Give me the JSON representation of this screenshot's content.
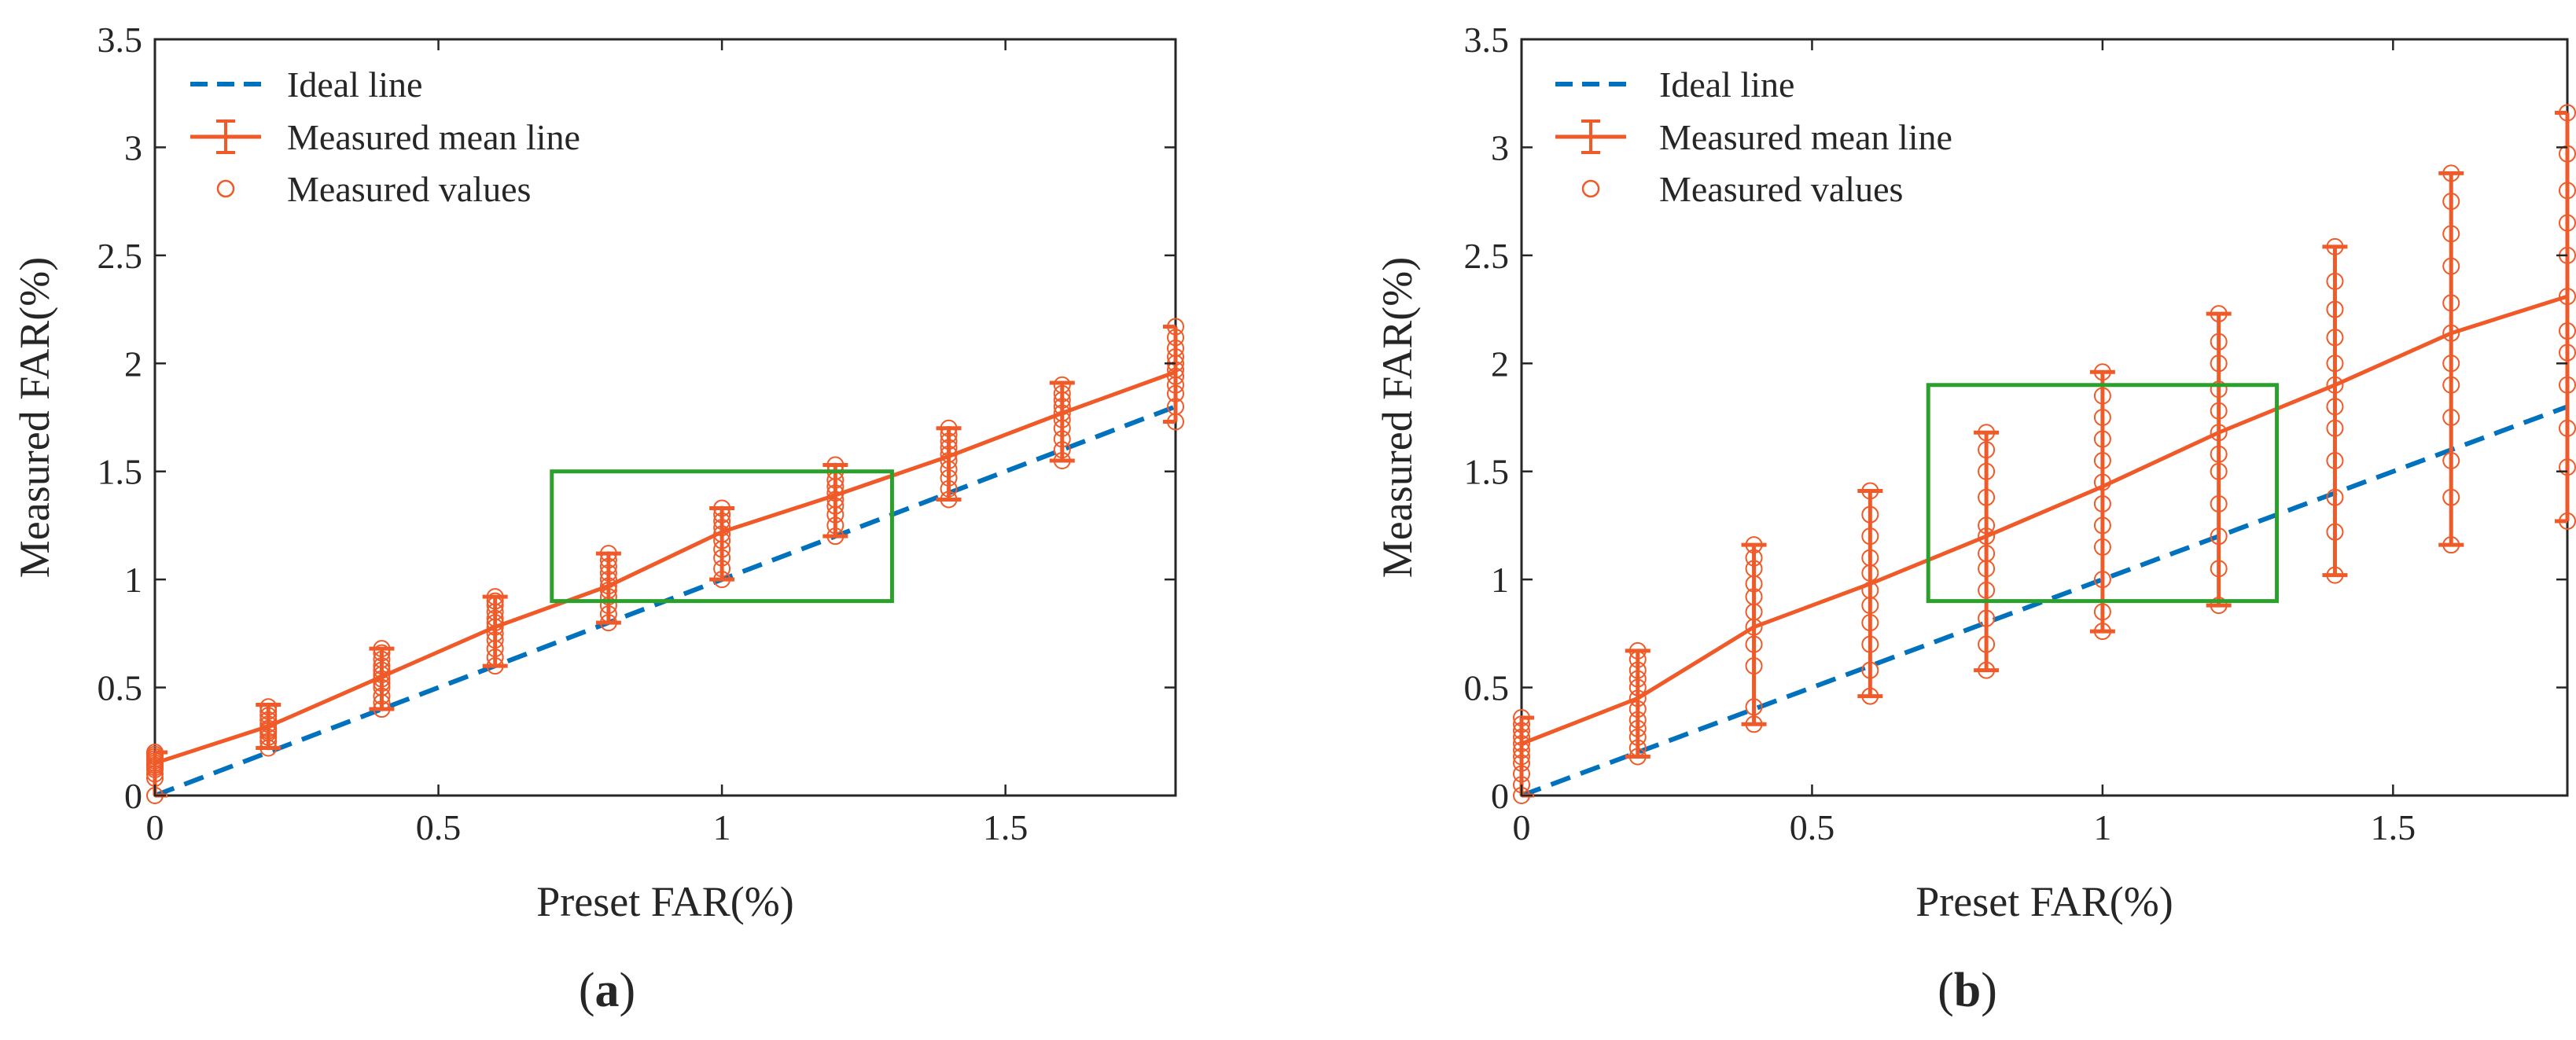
{
  "chart_data": [
    {
      "type": "line",
      "panel": "a",
      "caption_open": "(",
      "caption_letter": "a",
      "caption_close": ")",
      "xlabel": "Preset FAR(%)",
      "ylabel": "Measured FAR(%)",
      "xlim": [
        0,
        1.8
      ],
      "ylim": [
        0,
        3.5
      ],
      "xticks": [
        0,
        0.5,
        1,
        1.5
      ],
      "xtick_labels": [
        "0",
        "0.5",
        "1",
        "1.5"
      ],
      "yticks": [
        0,
        0.5,
        1,
        1.5,
        2,
        2.5,
        3,
        3.5
      ],
      "ytick_labels": [
        "0",
        "0.5",
        "1",
        "1.5",
        "2",
        "2.5",
        "3",
        "3.5"
      ],
      "legend": [
        "Ideal line",
        "Measured mean line",
        "Measured values"
      ],
      "legend_position": "top-left",
      "colors": {
        "ideal": "#0072BD",
        "measured": "#F05A28",
        "box": "#2CA02C"
      },
      "x": [
        0,
        0.2,
        0.4,
        0.6,
        0.8,
        1.0,
        1.2,
        1.4,
        1.6,
        1.8
      ],
      "ideal": [
        0,
        0.2,
        0.4,
        0.6,
        0.8,
        1.0,
        1.2,
        1.4,
        1.6,
        1.8
      ],
      "mean": [
        0.15,
        0.32,
        0.55,
        0.78,
        0.97,
        1.22,
        1.39,
        1.57,
        1.77,
        1.96
      ],
      "err_low": [
        0.0,
        0.22,
        0.4,
        0.6,
        0.8,
        1.0,
        1.2,
        1.37,
        1.55,
        1.73
      ],
      "err_high": [
        0.2,
        0.42,
        0.68,
        0.92,
        1.12,
        1.33,
        1.53,
        1.7,
        1.91,
        2.17
      ],
      "scatter": [
        [
          0.0,
          0.08,
          0.1,
          0.12,
          0.13,
          0.14,
          0.15,
          0.16,
          0.17,
          0.18,
          0.19,
          0.2
        ],
        [
          0.22,
          0.25,
          0.27,
          0.29,
          0.3,
          0.31,
          0.33,
          0.35,
          0.37,
          0.39,
          0.41
        ],
        [
          0.4,
          0.43,
          0.46,
          0.5,
          0.52,
          0.54,
          0.56,
          0.58,
          0.6,
          0.63,
          0.66,
          0.68
        ],
        [
          0.6,
          0.64,
          0.68,
          0.72,
          0.75,
          0.78,
          0.8,
          0.82,
          0.85,
          0.88,
          0.9,
          0.92
        ],
        [
          0.8,
          0.84,
          0.88,
          0.92,
          0.95,
          0.97,
          1.0,
          1.03,
          1.06,
          1.09,
          1.12
        ],
        [
          1.0,
          1.05,
          1.1,
          1.14,
          1.18,
          1.21,
          1.24,
          1.27,
          1.3,
          1.33
        ],
        [
          1.2,
          1.25,
          1.3,
          1.34,
          1.37,
          1.4,
          1.43,
          1.46,
          1.5,
          1.53
        ],
        [
          1.37,
          1.42,
          1.47,
          1.51,
          1.55,
          1.58,
          1.61,
          1.64,
          1.67,
          1.7
        ],
        [
          1.55,
          1.6,
          1.65,
          1.7,
          1.74,
          1.77,
          1.8,
          1.83,
          1.86,
          1.9
        ],
        [
          1.73,
          1.8,
          1.86,
          1.9,
          1.94,
          1.97,
          2.0,
          2.03,
          2.07,
          2.12,
          2.17
        ]
      ],
      "box": {
        "x": [
          0.7,
          1.3
        ],
        "y": [
          0.9,
          1.5
        ]
      }
    },
    {
      "type": "line",
      "panel": "b",
      "caption_open": "(",
      "caption_letter": "b",
      "caption_close": ")",
      "xlabel": "Preset FAR(%)",
      "ylabel": "Measured FAR(%)",
      "xlim": [
        0,
        1.8
      ],
      "ylim": [
        0,
        3.5
      ],
      "xticks": [
        0,
        0.5,
        1,
        1.5
      ],
      "xtick_labels": [
        "0",
        "0.5",
        "1",
        "1.5"
      ],
      "yticks": [
        0,
        0.5,
        1,
        1.5,
        2,
        2.5,
        3,
        3.5
      ],
      "ytick_labels": [
        "0",
        "0.5",
        "1",
        "1.5",
        "2",
        "2.5",
        "3",
        "3.5"
      ],
      "legend": [
        "Ideal line",
        "Measured mean line",
        "Measured values"
      ],
      "legend_position": "top-left",
      "colors": {
        "ideal": "#0072BD",
        "measured": "#F05A28",
        "box": "#2CA02C"
      },
      "x": [
        0,
        0.2,
        0.4,
        0.6,
        0.8,
        1.0,
        1.2,
        1.4,
        1.6,
        1.8
      ],
      "ideal": [
        0,
        0.2,
        0.4,
        0.6,
        0.8,
        1.0,
        1.2,
        1.4,
        1.6,
        1.8
      ],
      "mean": [
        0.24,
        0.45,
        0.78,
        0.98,
        1.2,
        1.43,
        1.68,
        1.9,
        2.14,
        2.31
      ],
      "err_low": [
        0.0,
        0.18,
        0.33,
        0.46,
        0.58,
        0.76,
        0.88,
        1.02,
        1.16,
        1.27
      ],
      "err_high": [
        0.36,
        0.67,
        1.16,
        1.41,
        1.68,
        1.96,
        2.23,
        2.54,
        2.88,
        3.16
      ],
      "scatter": [
        [
          0.0,
          0.05,
          0.1,
          0.15,
          0.18,
          0.21,
          0.24,
          0.27,
          0.3,
          0.33,
          0.36
        ],
        [
          0.18,
          0.22,
          0.27,
          0.31,
          0.35,
          0.4,
          0.45,
          0.5,
          0.54,
          0.58,
          0.63,
          0.67
        ],
        [
          0.33,
          0.41,
          0.6,
          0.7,
          0.78,
          0.85,
          0.92,
          0.98,
          1.05,
          1.1,
          1.16
        ],
        [
          0.46,
          0.58,
          0.7,
          0.8,
          0.88,
          0.95,
          1.03,
          1.1,
          1.2,
          1.3,
          1.41
        ],
        [
          0.58,
          0.7,
          0.82,
          0.95,
          1.05,
          1.12,
          1.2,
          1.25,
          1.38,
          1.5,
          1.6,
          1.68
        ],
        [
          0.76,
          0.85,
          1.0,
          1.15,
          1.25,
          1.35,
          1.45,
          1.55,
          1.65,
          1.75,
          1.85,
          1.96
        ],
        [
          0.88,
          1.05,
          1.2,
          1.35,
          1.5,
          1.58,
          1.68,
          1.78,
          1.88,
          2.0,
          2.1,
          2.23
        ],
        [
          1.02,
          1.22,
          1.38,
          1.55,
          1.7,
          1.8,
          1.9,
          2.0,
          2.12,
          2.25,
          2.38,
          2.54
        ],
        [
          1.16,
          1.38,
          1.55,
          1.75,
          1.9,
          2.0,
          2.14,
          2.28,
          2.45,
          2.6,
          2.75,
          2.88
        ],
        [
          1.27,
          1.52,
          1.7,
          1.9,
          2.05,
          2.15,
          2.31,
          2.5,
          2.65,
          2.8,
          2.97,
          3.16
        ]
      ],
      "box": {
        "x": [
          0.7,
          1.3
        ],
        "y": [
          0.9,
          1.9
        ]
      }
    }
  ]
}
